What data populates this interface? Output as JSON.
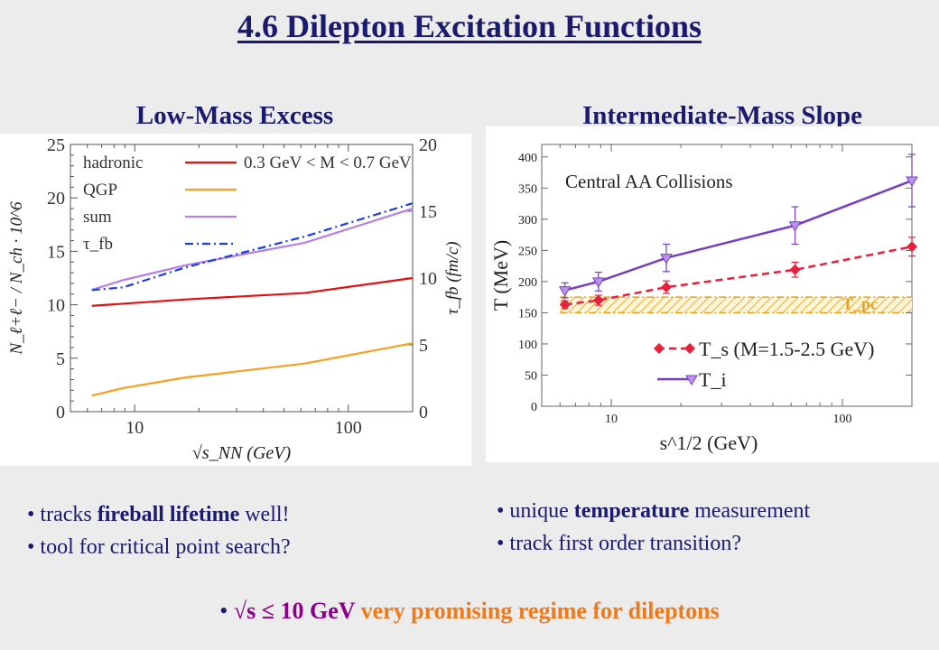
{
  "title": "4.6 Dilepton Excitation Functions",
  "left": {
    "heading": "Low-Mass Excess",
    "bullets": [
      {
        "pre": "tracks ",
        "bold": "fireball lifetime",
        "post": " well!"
      },
      {
        "pre": "tool for critical point search?",
        "bold": "",
        "post": ""
      }
    ]
  },
  "right": {
    "heading": "Intermediate-Mass Slope",
    "bullets": [
      {
        "pre": "unique ",
        "bold": "temperature",
        "post": " measurement"
      },
      {
        "pre": "track first order transition?",
        "bold": "",
        "post": ""
      }
    ]
  },
  "footer": {
    "bullet": "•",
    "part1": "√s ≤ 10 GeV",
    "part2": " very promising regime for dileptons",
    "color1": "#8b008b",
    "color2": "#f07a1a"
  },
  "chart_data": [
    {
      "type": "line",
      "xscale": "log",
      "xlim": [
        5,
        200
      ],
      "ylim": [
        0,
        25
      ],
      "y2lim": [
        0,
        20
      ],
      "xticks": [
        "10",
        "100"
      ],
      "yticks": [
        "0",
        "5",
        "10",
        "15",
        "20",
        "25"
      ],
      "y2ticks": [
        "0",
        "5",
        "10",
        "15",
        "20"
      ],
      "xlabel": "√s_NN (GeV)",
      "ylabel": "N_ℓ+ℓ− / N_ch · 10^6",
      "y2label": "τ_fb (fm/c)",
      "legend": [
        "hadronic",
        "QGP",
        "sum",
        "τ_fb"
      ],
      "legend_text": "0.3 GeV < M < 0.7 GeV",
      "series": [
        {
          "name": "hadronic",
          "color": "#e01010",
          "dash": "",
          "x": [
            6.3,
            8.8,
            17.3,
            62.4,
            200
          ],
          "values": [
            9.9,
            10.1,
            10.5,
            11.1,
            12.5
          ]
        },
        {
          "name": "QGP",
          "color": "#f5a020",
          "dash": "",
          "x": [
            6.3,
            8.8,
            17.3,
            62.4,
            200
          ],
          "values": [
            1.5,
            2.2,
            3.2,
            4.5,
            6.4
          ]
        },
        {
          "name": "sum",
          "color": "#b77ee8",
          "dash": "",
          "x": [
            6.3,
            8.8,
            17.3,
            62.4,
            200
          ],
          "values": [
            11.4,
            12.3,
            13.7,
            15.8,
            19.0
          ]
        },
        {
          "name": "τ_fb",
          "color": "#1a3ee6",
          "dash": "9,4,2,4",
          "axis": "y2",
          "x": [
            6.3,
            8.8,
            17.3,
            62.4,
            200
          ],
          "values": [
            9.1,
            9.3,
            10.8,
            13.1,
            15.6
          ]
        }
      ]
    },
    {
      "type": "scatter",
      "xscale": "log",
      "xlim": [
        5,
        200
      ],
      "ylim": [
        0,
        420
      ],
      "xticks": [
        "10",
        "100"
      ],
      "yticks": [
        "0",
        "50",
        "100",
        "150",
        "200",
        "250",
        "300",
        "350",
        "400"
      ],
      "xlabel": "s^1/2 (GeV)",
      "ylabel": "T (MeV)",
      "annotation": "Central AA Collisions",
      "band_label": "T_pc",
      "band": [
        150,
        175
      ],
      "legend": [
        "T_s (M=1.5-2.5 GeV)",
        "T_i"
      ],
      "series": [
        {
          "name": "T_s (M=1.5-2.5 GeV)",
          "color": "#e8203a",
          "marker": "diamond",
          "dash": "8,5",
          "x": [
            6.3,
            8.8,
            17.3,
            62.4,
            200
          ],
          "values": [
            163,
            170,
            191,
            219,
            256
          ],
          "err": [
            6,
            8,
            10,
            12,
            15
          ]
        },
        {
          "name": "T_i",
          "color": "#7a3cc0",
          "marker": "triangle",
          "dash": "",
          "x": [
            6.3,
            8.8,
            17.3,
            62.4,
            200
          ],
          "values": [
            186,
            200,
            238,
            290,
            362
          ],
          "err": [
            12,
            15,
            22,
            30,
            42
          ]
        }
      ]
    }
  ]
}
